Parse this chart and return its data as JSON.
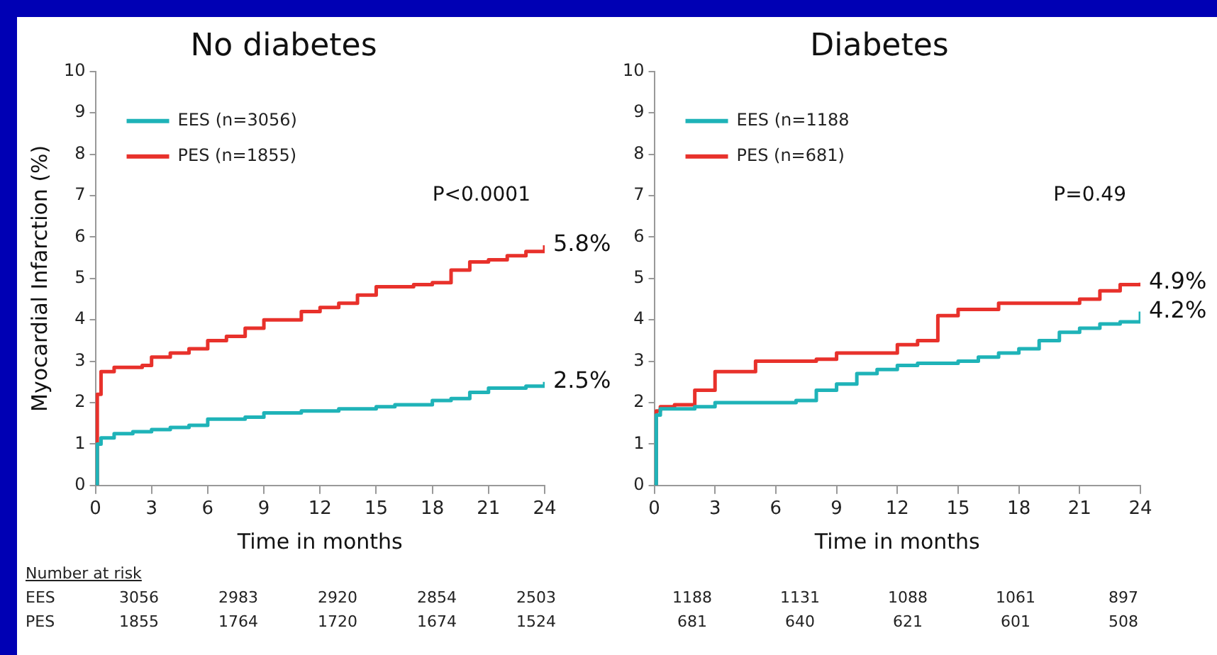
{
  "chart_data": [
    {
      "type": "step",
      "title": "No diabetes",
      "xlabel": "Time in months",
      "ylabel": "Myocardial Infarction (%)",
      "xlim": [
        0,
        24
      ],
      "xticks": [
        0,
        3,
        6,
        9,
        12,
        15,
        18,
        21,
        24
      ],
      "ylim": [
        0,
        10
      ],
      "yticks": [
        0,
        1,
        2,
        3,
        4,
        5,
        6,
        7,
        8,
        9,
        10
      ],
      "grid": false,
      "legend": "top left",
      "marker": "none",
      "series": [
        {
          "name": "EES (n=3056)",
          "color": "#1fb3b8",
          "x": [
            0,
            0.1,
            0.3,
            1,
            2,
            3,
            4,
            5,
            6,
            8,
            9,
            11,
            12,
            13,
            15,
            16,
            18,
            19,
            20,
            21,
            22,
            23,
            24
          ],
          "values": [
            0,
            1.0,
            1.15,
            1.25,
            1.3,
            1.35,
            1.4,
            1.45,
            1.6,
            1.65,
            1.75,
            1.8,
            1.8,
            1.85,
            1.9,
            1.95,
            2.05,
            2.1,
            2.25,
            2.35,
            2.35,
            2.4,
            2.5
          ],
          "value_labels": [
            null,
            null,
            null,
            null,
            null,
            null,
            null,
            null,
            null,
            null,
            null,
            null,
            null,
            null,
            null,
            null,
            null,
            null,
            null,
            null,
            null,
            null,
            "2.5%"
          ]
        },
        {
          "name": "PES (n=1855)",
          "color": "#e8312b",
          "x": [
            0,
            0.1,
            0.3,
            1,
            2.5,
            3,
            4,
            5,
            6,
            7,
            8,
            9,
            10,
            11,
            12,
            13,
            14,
            15,
            16,
            17,
            18,
            19,
            20,
            21,
            22,
            23,
            24
          ],
          "values": [
            0,
            2.2,
            2.75,
            2.85,
            2.9,
            3.1,
            3.2,
            3.3,
            3.5,
            3.6,
            3.8,
            4.0,
            4.0,
            4.2,
            4.3,
            4.4,
            4.6,
            4.8,
            4.8,
            4.85,
            4.9,
            5.2,
            5.4,
            5.45,
            5.55,
            5.65,
            5.8
          ],
          "value_labels": [
            null,
            null,
            null,
            null,
            null,
            null,
            null,
            null,
            null,
            null,
            null,
            null,
            null,
            null,
            null,
            null,
            null,
            null,
            null,
            null,
            null,
            null,
            null,
            null,
            null,
            null,
            "5.8%"
          ]
        }
      ],
      "annotations": [
        "P<0.0001",
        "Number at risk",
        "EES",
        "3056",
        "2983",
        "2920",
        "2854",
        "2503",
        "PES",
        "1855",
        "1764",
        "1720",
        "1674",
        "1524"
      ]
    },
    {
      "type": "step",
      "title": "Diabetes",
      "xlabel": "Time in months",
      "xlim": [
        0,
        24
      ],
      "xticks": [
        0,
        3,
        6,
        9,
        12,
        15,
        18,
        21,
        24
      ],
      "ylim": [
        0,
        10
      ],
      "yticks": [
        0,
        1,
        2,
        3,
        4,
        5,
        6,
        7,
        8,
        9,
        10
      ],
      "grid": false,
      "legend": "top left",
      "marker": "none",
      "series": [
        {
          "name": "EES (n=1188",
          "color": "#1fb3b8",
          "x": [
            0,
            0.1,
            0.3,
            2,
            3,
            6,
            7,
            8,
            9,
            10,
            11,
            12,
            13,
            15,
            16,
            17,
            18,
            19,
            20,
            21,
            22,
            23,
            24
          ],
          "values": [
            0,
            1.7,
            1.85,
            1.9,
            2.0,
            2.0,
            2.05,
            2.3,
            2.45,
            2.7,
            2.8,
            2.9,
            2.95,
            3.0,
            3.1,
            3.2,
            3.3,
            3.5,
            3.7,
            3.8,
            3.9,
            3.95,
            4.2
          ],
          "value_labels": [
            null,
            null,
            null,
            null,
            null,
            null,
            null,
            null,
            null,
            null,
            null,
            null,
            null,
            null,
            null,
            null,
            null,
            null,
            null,
            null,
            null,
            null,
            "4.2%"
          ]
        },
        {
          "name": "PES (n=681)",
          "color": "#e8312b",
          "x": [
            0,
            0.1,
            0.3,
            1,
            2,
            3,
            5,
            8,
            9,
            12,
            13,
            14,
            15,
            17,
            21,
            22,
            23,
            24
          ],
          "values": [
            0,
            1.8,
            1.9,
            1.95,
            2.3,
            2.75,
            3.0,
            3.05,
            3.2,
            3.4,
            3.5,
            4.1,
            4.25,
            4.4,
            4.5,
            4.7,
            4.85,
            4.9
          ],
          "value_labels": [
            null,
            null,
            null,
            null,
            null,
            null,
            null,
            null,
            null,
            null,
            null,
            null,
            null,
            null,
            null,
            null,
            null,
            "4.9%"
          ]
        }
      ],
      "annotations": [
        "P=0.49",
        "1188",
        "1131",
        "1088",
        "1061",
        "897",
        "681",
        "640",
        "621",
        "601",
        "508"
      ]
    }
  ]
}
